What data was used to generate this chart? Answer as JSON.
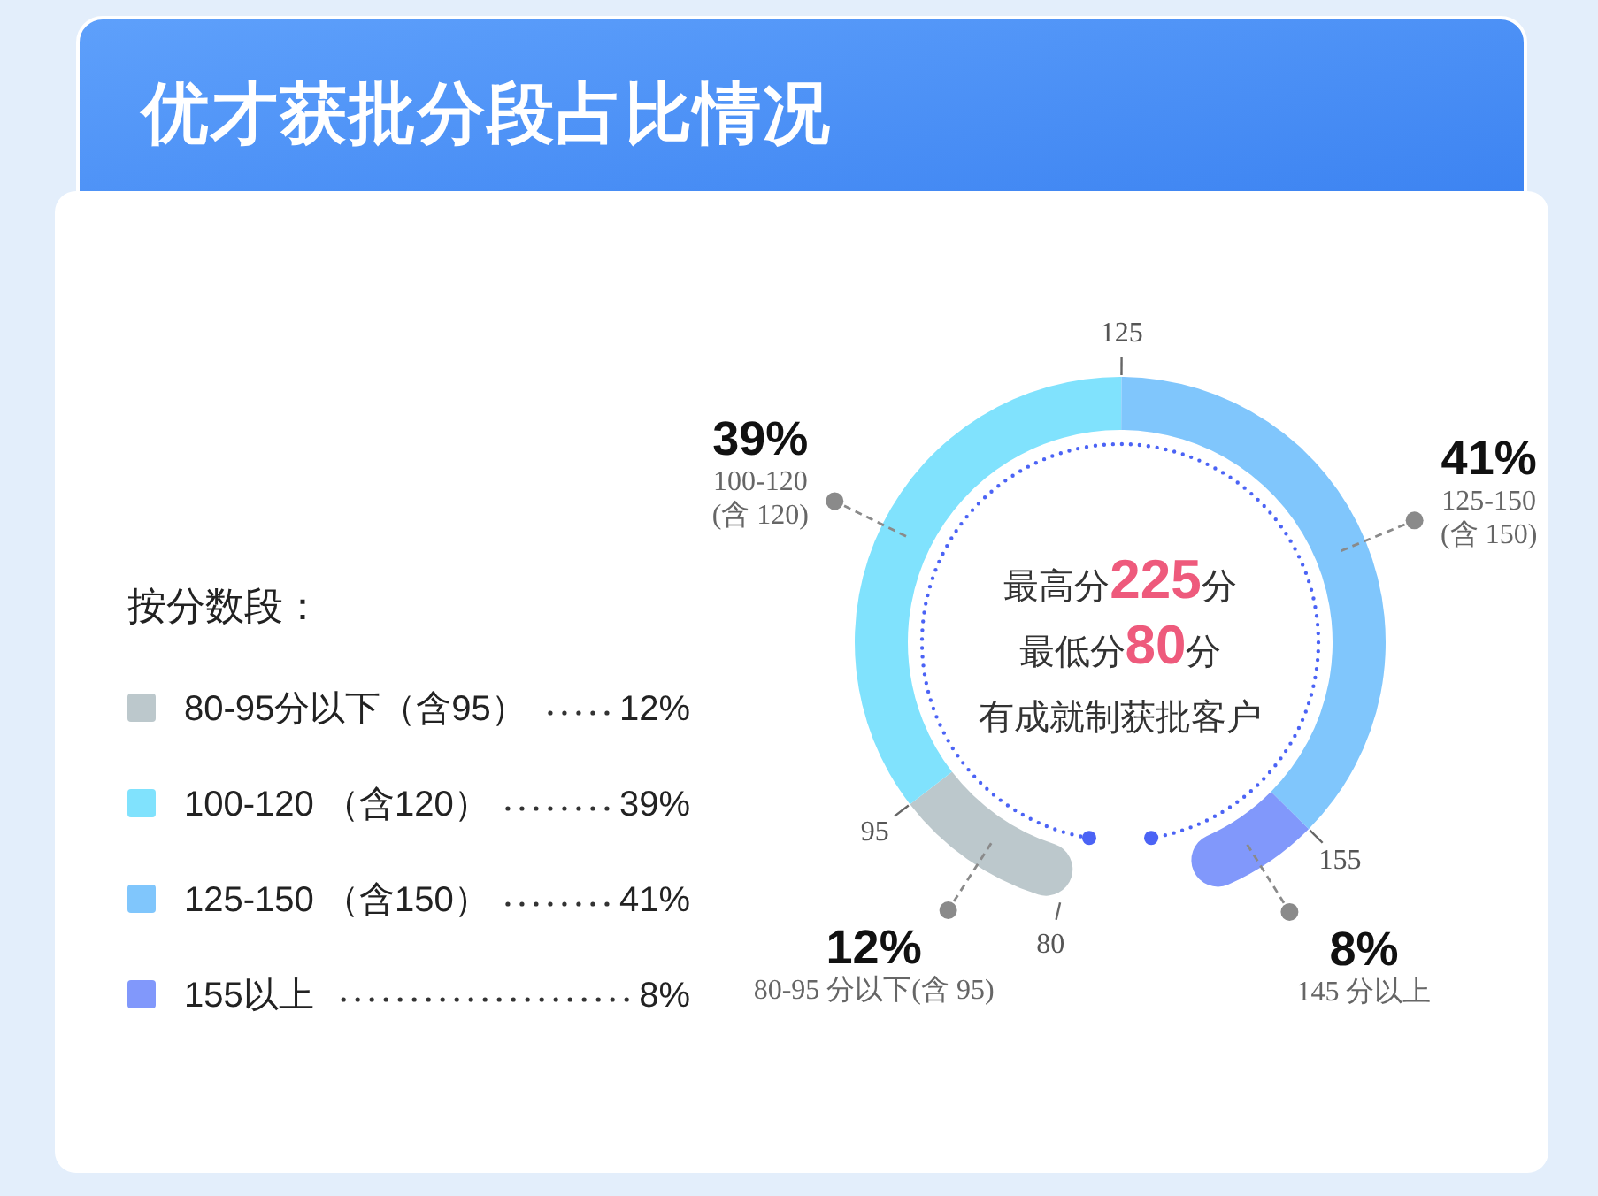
{
  "chart_data": {
    "type": "donut",
    "title": "优才获批分段占比情况",
    "legend_title": "按分数段：",
    "legend": "left",
    "categories": [
      "80-95分以下（含95）",
      "100-120 （含120）",
      "125-150 （含150）",
      "155以上"
    ],
    "values": [
      12,
      39,
      41,
      8
    ],
    "colors": [
      "#bcc8cc",
      "#80e2fd",
      "#80c6fc",
      "#8198fb"
    ],
    "value_labels": [
      "12%",
      "39%",
      "41%",
      "8%"
    ],
    "annotations": [
      "80-95 分以下(含 95)",
      "100-120\n(含 120)",
      "125-150\n(含 150)",
      "145 分以上",
      "80",
      "95",
      "125",
      "155",
      "最高分225分",
      "最低分80分",
      "有成就制获批客户"
    ]
  }
}
